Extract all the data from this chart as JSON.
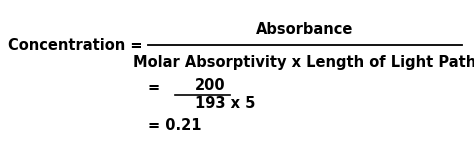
{
  "bg_color": "#ffffff",
  "line1_left": "Concentration = ",
  "line1_numerator": "Absorbance",
  "line1_denominator": "Molar Absorptivity x Length of Light Path",
  "line2_eq": "= ",
  "line2_numerator": "200",
  "line2_denominator": "193 x 5",
  "line3": "= 0.21",
  "font_size_main": 10.5,
  "text_color": "#000000",
  "fraction_line_color": "#000000",
  "fig_width": 4.74,
  "fig_height": 1.53,
  "dpi": 100
}
